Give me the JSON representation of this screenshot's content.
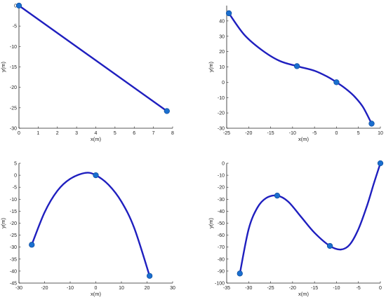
{
  "colors": {
    "curve": "#1f1fbf",
    "marker": "#1a6fcf",
    "axis": "#222222"
  },
  "chart_data": [
    {
      "type": "line",
      "xlabel": "x(m)",
      "ylabel": "y(m)",
      "xlim": [
        0,
        8
      ],
      "ylim": [
        -30,
        0
      ],
      "xticks": [
        0,
        1,
        2,
        3,
        4,
        5,
        6,
        7,
        8
      ],
      "yticks": [
        0,
        -5,
        -10,
        -15,
        -20,
        -25,
        -30
      ],
      "series": [
        {
          "curve": [
            [
              0,
              0
            ],
            [
              7.7,
              -25.8
            ]
          ],
          "points": [
            [
              0,
              0
            ],
            [
              7.7,
              -25.8
            ]
          ]
        }
      ]
    },
    {
      "type": "line",
      "xlabel": "x(m)",
      "ylabel": "y(m)",
      "xlim": [
        -25,
        10
      ],
      "ylim": [
        -30,
        50
      ],
      "xticks": [
        -25,
        -20,
        -15,
        -10,
        -5,
        0,
        5,
        10
      ],
      "yticks": [
        40,
        30,
        20,
        10,
        0,
        -10,
        -20,
        -30
      ],
      "series": [
        {
          "curve": [
            [
              -24.5,
              45
            ],
            [
              -21,
              31
            ],
            [
              -17,
              21
            ],
            [
              -13,
              14
            ],
            [
              -9,
              10.5
            ],
            [
              -5,
              7.5
            ],
            [
              -2,
              3.5
            ],
            [
              0,
              0
            ],
            [
              2,
              -4
            ],
            [
              4,
              -9
            ],
            [
              6,
              -16
            ],
            [
              8,
              -27
            ]
          ],
          "points": [
            [
              -24.5,
              45
            ],
            [
              -9,
              10.5
            ],
            [
              0,
              0
            ],
            [
              8,
              -27
            ]
          ]
        }
      ]
    },
    {
      "type": "line",
      "xlabel": "x(m)",
      "ylabel": "y(m)",
      "xlim": [
        -30,
        30
      ],
      "ylim": [
        -45,
        5
      ],
      "xticks": [
        -30,
        -20,
        -10,
        0,
        10,
        20,
        30
      ],
      "yticks": [
        5,
        0,
        -5,
        -10,
        -15,
        -20,
        -25,
        -30,
        -35,
        -40,
        -45
      ],
      "series": [
        {
          "curve": [
            [
              -25,
              -29
            ],
            [
              -20,
              -15.5
            ],
            [
              -15,
              -6.5
            ],
            [
              -10,
              -1.5
            ],
            [
              -4,
              1
            ],
            [
              0,
              0
            ],
            [
              5,
              -4
            ],
            [
              10,
              -11
            ],
            [
              15,
              -22
            ],
            [
              21,
              -42
            ]
          ],
          "points": [
            [
              -25,
              -29
            ],
            [
              0,
              0
            ],
            [
              21,
              -42
            ]
          ]
        }
      ]
    },
    {
      "type": "line",
      "xlabel": "x(m)",
      "ylabel": "y(m)",
      "xlim": [
        -35,
        0
      ],
      "ylim": [
        -100,
        0
      ],
      "xticks": [
        -35,
        -30,
        -25,
        -20,
        -15,
        -10,
        -5,
        0
      ],
      "yticks": [
        0,
        -10,
        -20,
        -30,
        -40,
        -50,
        -60,
        -70,
        -80,
        -90,
        -100
      ],
      "series": [
        {
          "curve": [
            [
              -32,
              -92
            ],
            [
              -30,
              -55
            ],
            [
              -28,
              -37
            ],
            [
              -26,
              -29
            ],
            [
              -23.5,
              -27
            ],
            [
              -21,
              -32
            ],
            [
              -18,
              -45
            ],
            [
              -15,
              -58
            ],
            [
              -11.5,
              -69
            ],
            [
              -9,
              -72
            ],
            [
              -7,
              -68
            ],
            [
              -5,
              -55
            ],
            [
              -3,
              -35
            ],
            [
              -1.5,
              -17
            ],
            [
              0,
              0
            ]
          ],
          "points": [
            [
              -32,
              -92
            ],
            [
              -23.5,
              -27
            ],
            [
              -11.5,
              -69
            ],
            [
              0,
              0
            ]
          ]
        }
      ]
    }
  ]
}
